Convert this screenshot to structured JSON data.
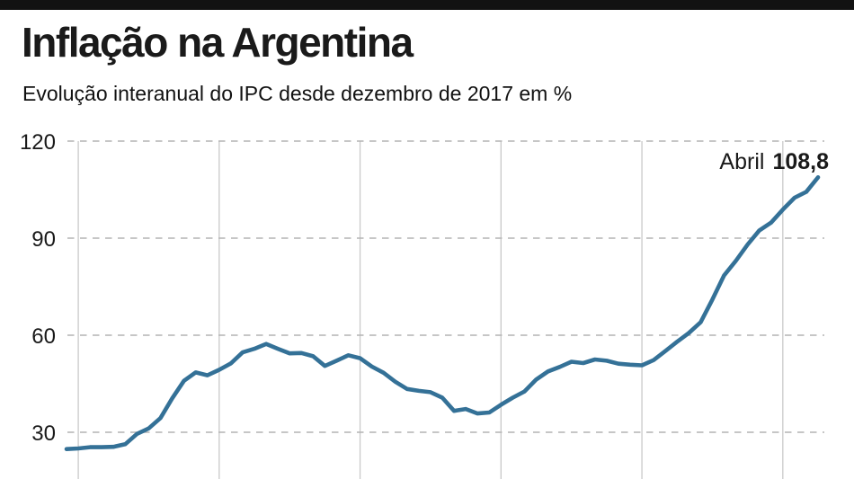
{
  "header": {
    "title": "Inflação na Argentina",
    "subtitle": "Evolução interanual do IPC desde dezembro de 2017 em %"
  },
  "annotation": {
    "label": "Abril",
    "value": "108,8"
  },
  "colors": {
    "top_bar": "#121212",
    "line": "#347197",
    "vertical_grid": "#c9c9c9",
    "dashed_grid": "#b4b4b4",
    "text": "#1a1a1a"
  },
  "chart_data": {
    "type": "line",
    "title": "Inflação na Argentina",
    "subtitle": "Evolução interanual do IPC desde dezembro de 2017 em %",
    "unit": "%",
    "x": [
      "2017-12",
      "2018-01",
      "2018-02",
      "2018-03",
      "2018-04",
      "2018-05",
      "2018-06",
      "2018-07",
      "2018-08",
      "2018-09",
      "2018-10",
      "2018-11",
      "2018-12",
      "2019-01",
      "2019-02",
      "2019-03",
      "2019-04",
      "2019-05",
      "2019-06",
      "2019-07",
      "2019-08",
      "2019-09",
      "2019-10",
      "2019-11",
      "2019-12",
      "2020-01",
      "2020-02",
      "2020-03",
      "2020-04",
      "2020-05",
      "2020-06",
      "2020-07",
      "2020-08",
      "2020-09",
      "2020-10",
      "2020-11",
      "2020-12",
      "2021-01",
      "2021-02",
      "2021-03",
      "2021-04",
      "2021-05",
      "2021-06",
      "2021-07",
      "2021-08",
      "2021-09",
      "2021-10",
      "2021-11",
      "2021-12",
      "2022-01",
      "2022-02",
      "2022-03",
      "2022-04",
      "2022-05",
      "2022-06",
      "2022-07",
      "2022-08",
      "2022-09",
      "2022-10",
      "2022-11",
      "2022-12",
      "2023-01",
      "2023-02",
      "2023-03",
      "2023-04"
    ],
    "values": [
      24.8,
      25.0,
      25.4,
      25.4,
      25.5,
      26.3,
      29.5,
      31.2,
      34.4,
      40.5,
      45.9,
      48.5,
      47.6,
      49.3,
      51.3,
      54.7,
      55.8,
      57.3,
      55.8,
      54.4,
      54.5,
      53.5,
      50.5,
      52.1,
      53.8,
      52.9,
      50.3,
      48.4,
      45.6,
      43.4,
      42.8,
      42.4,
      40.7,
      36.6,
      37.2,
      35.8,
      36.1,
      38.5,
      40.7,
      42.6,
      46.3,
      48.8,
      50.2,
      51.8,
      51.4,
      52.5,
      52.1,
      51.2,
      50.9,
      50.7,
      52.3,
      55.1,
      58.0,
      60.7,
      64.0,
      71.0,
      78.5,
      83.0,
      88.0,
      92.4,
      94.8,
      98.8,
      102.5,
      104.3,
      108.8
    ],
    "yticks": [
      30,
      60,
      90,
      120
    ],
    "ylim": [
      20,
      125
    ],
    "grid": "horizontal dashed gridlines at yticks; solid vertical gridlines at each January; no x-axis labels visible",
    "legend": "none",
    "annotation": "Abril 108,8"
  }
}
